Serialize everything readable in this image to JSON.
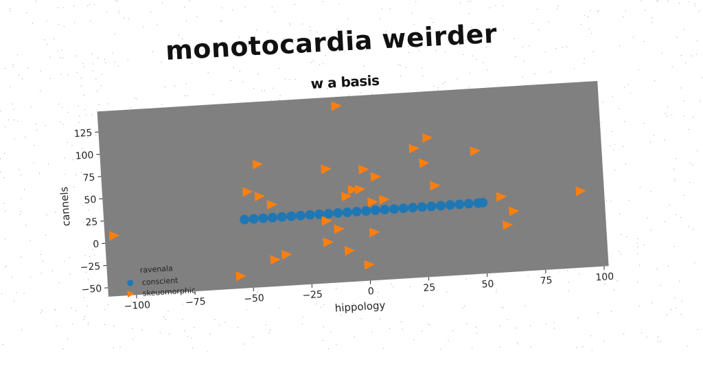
{
  "chart_data": {
    "type": "scatter",
    "title": "monotocardia weirder",
    "subtitle": "w a basis",
    "xlabel": "hippology",
    "ylabel": "cannels",
    "xlim": [
      -112,
      102
    ],
    "ylim": [
      -60,
      148
    ],
    "xticks": [
      -100,
      -75,
      -50,
      -25,
      0,
      25,
      50,
      75,
      100
    ],
    "yticks": [
      -50,
      -25,
      0,
      25,
      50,
      75,
      100,
      125
    ],
    "xtick_labels": [
      "−100",
      "−75",
      "−50",
      "−25",
      "0",
      "25",
      "50",
      "75",
      "100"
    ],
    "ytick_labels": [
      "−50",
      "−25",
      "0",
      "25",
      "50",
      "75",
      "100",
      "125"
    ],
    "background_color": "#808080",
    "grid": false,
    "legend": {
      "title": "ravenala",
      "placement": "lower-left"
    },
    "series": [
      {
        "name": "conscient",
        "marker": "circle",
        "color": "#1f77b4",
        "x": [
          -52,
          -48,
          -44,
          -40,
          -36,
          -32,
          -28,
          -24,
          -20,
          -16,
          -12,
          -8,
          -4,
          0,
          4,
          8,
          12,
          16,
          20,
          24,
          28,
          32,
          36,
          40,
          44,
          48,
          50
        ],
        "y": [
          17,
          17.1,
          17.2,
          17.3,
          17.4,
          17.5,
          17.6,
          17.7,
          17.8,
          17.9,
          18.0,
          18.1,
          18.2,
          18.3,
          18.4,
          18.5,
          18.6,
          18.7,
          18.8,
          18.9,
          19.0,
          19.1,
          19.2,
          19.3,
          19.4,
          19.5,
          19.6
        ]
      },
      {
        "name": "skeuomorphic",
        "marker": "triangle-right",
        "color": "#ff7f0e",
        "x": [
          -108,
          -55,
          -50,
          -45,
          -45,
          -40,
          -40,
          -35,
          -17,
          -17,
          -16,
          -10,
          -12,
          -8,
          -8,
          -5,
          0,
          -2,
          0,
          3,
          3,
          5,
          8,
          22,
          26,
          28,
          30,
          48,
          58,
          60,
          63,
          92
        ],
        "y": [
          8,
          -46,
          48,
          78,
          42,
          32,
          -30,
          -25,
          10,
          -14,
          68,
          138,
          0,
          -25,
          36,
          43,
          -42,
          43,
          65,
          28,
          -6,
          56,
          30,
          85,
          68,
          96,
          42,
          78,
          25,
          -7,
          8,
          26
        ]
      }
    ]
  }
}
